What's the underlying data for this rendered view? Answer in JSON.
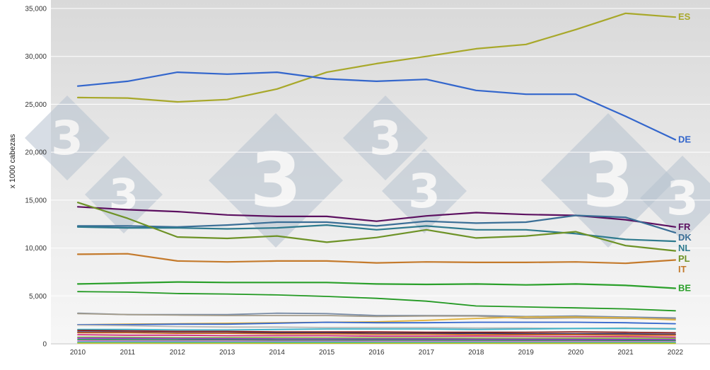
{
  "chart_data": {
    "type": "line",
    "title": "",
    "xlabel": "",
    "ylabel": "x 1000 cabezas",
    "x": [
      2010,
      2011,
      2012,
      2013,
      2014,
      2015,
      2016,
      2017,
      2018,
      2019,
      2020,
      2021,
      2022
    ],
    "x_tick_labels": [
      "2010",
      "2011",
      "2012",
      "2013",
      "2014",
      "2015",
      "2016",
      "2017",
      "2018",
      "2019",
      "2020",
      "2021",
      "2022"
    ],
    "ylim": [
      0,
      35000
    ],
    "y_ticks": [
      0,
      5000,
      10000,
      15000,
      20000,
      25000,
      30000,
      35000
    ],
    "y_tick_labels": [
      "0",
      "5,000",
      "10,000",
      "15,000",
      "20,000",
      "25,000",
      "30,000",
      "35,000"
    ],
    "grid": "horizontal",
    "watermark": "3",
    "series": [
      {
        "name": "ES",
        "color": "#a8a82a",
        "labeled": true,
        "values": [
          25700,
          25650,
          25250,
          25500,
          26600,
          28350,
          29250,
          30000,
          30800,
          31250,
          32800,
          34500,
          34100
        ]
      },
      {
        "name": "DE",
        "color": "#3366cc",
        "labeled": true,
        "values": [
          26900,
          27400,
          28350,
          28150,
          28350,
          27650,
          27400,
          27600,
          26450,
          26050,
          26050,
          23750,
          21300
        ]
      },
      {
        "name": "FR",
        "color": "#5c1060",
        "labeled": true,
        "values": [
          14300,
          14000,
          13800,
          13450,
          13300,
          13300,
          12800,
          13350,
          13700,
          13500,
          13400,
          12950,
          12200
        ]
      },
      {
        "name": "DK",
        "color": "#3a6e96",
        "labeled": true,
        "values": [
          12300,
          12300,
          12200,
          12400,
          12700,
          12700,
          12300,
          12800,
          12600,
          12700,
          13400,
          13200,
          11600
        ]
      },
      {
        "name": "NL",
        "color": "#2e7a8e",
        "labeled": true,
        "values": [
          12200,
          12100,
          12100,
          12000,
          12100,
          12400,
          11900,
          12300,
          11900,
          11900,
          11500,
          10900,
          10700
        ]
      },
      {
        "name": "PL",
        "color": "#6d9226",
        "labeled": true,
        "values": [
          14750,
          13100,
          11150,
          11000,
          11250,
          10600,
          11100,
          11900,
          11050,
          11250,
          11700,
          10250,
          9700
        ]
      },
      {
        "name": "IT",
        "color": "#c47a2c",
        "labeled": true,
        "values": [
          9350,
          9400,
          8650,
          8550,
          8650,
          8650,
          8450,
          8550,
          8500,
          8500,
          8550,
          8400,
          8750
        ]
      },
      {
        "name": "BE",
        "color": "#2ba02b",
        "labeled": true,
        "values": [
          6250,
          6350,
          6450,
          6400,
          6400,
          6400,
          6250,
          6200,
          6250,
          6150,
          6250,
          6100,
          5800
        ]
      },
      {
        "name": "",
        "color": "#229922",
        "labeled": false,
        "values": [
          5450,
          5400,
          5250,
          5200,
          5100,
          4950,
          4750,
          4450,
          3950,
          3850,
          3750,
          3650,
          3450
        ]
      },
      {
        "name": "",
        "color": "#7a8ca6",
        "labeled": false,
        "values": [
          3200,
          3050,
          3050,
          3050,
          3200,
          3150,
          2950,
          2950,
          2950,
          2850,
          2900,
          2800,
          2700
        ]
      },
      {
        "name": "",
        "color": "#a39b8a",
        "labeled": false,
        "values": [
          3150,
          3050,
          3000,
          2950,
          2950,
          2950,
          2850,
          2900,
          2900,
          2650,
          2700,
          2650,
          2600
        ]
      },
      {
        "name": "",
        "color": "#e3b33b",
        "labeled": false,
        "values": [
          2000,
          2050,
          2100,
          2150,
          2200,
          2250,
          2300,
          2450,
          2650,
          2800,
          2800,
          2700,
          2500
        ]
      },
      {
        "name": "",
        "color": "#3366cc",
        "labeled": false,
        "values": [
          2000,
          2000,
          2050,
          2050,
          2150,
          2250,
          2200,
          2200,
          2250,
          2250,
          2250,
          2200,
          2100
        ]
      },
      {
        "name": "",
        "color": "#b9b9b9",
        "labeled": false,
        "values": [
          1950,
          1900,
          1800,
          1750,
          1750,
          1700,
          1700,
          1700,
          1650,
          1650,
          1600,
          1650,
          1600
        ]
      },
      {
        "name": "",
        "color": "#3cb3c9",
        "labeled": false,
        "values": [
          1500,
          1500,
          1450,
          1450,
          1500,
          1550,
          1550,
          1550,
          1500,
          1550,
          1600,
          1600,
          1550
        ]
      },
      {
        "name": "",
        "color": "#8b1a1a",
        "labeled": false,
        "values": [
          1400,
          1350,
          1300,
          1300,
          1250,
          1250,
          1250,
          1200,
          1200,
          1200,
          1250,
          1200,
          1150
        ]
      },
      {
        "name": "",
        "color": "#333366",
        "labeled": false,
        "values": [
          1250,
          1200,
          1150,
          1150,
          1150,
          1150,
          1100,
          1100,
          1100,
          1050,
          1050,
          1050,
          1000
        ]
      },
      {
        "name": "",
        "color": "#d2691e",
        "labeled": false,
        "values": [
          1150,
          1150,
          1100,
          1100,
          1050,
          1050,
          1000,
          1000,
          950,
          950,
          950,
          900,
          900
        ]
      },
      {
        "name": "",
        "color": "#cc2a7a",
        "labeled": false,
        "values": [
          950,
          900,
          900,
          850,
          850,
          850,
          800,
          800,
          800,
          780,
          760,
          740,
          700
        ]
      },
      {
        "name": "",
        "color": "#7fbf3f",
        "labeled": false,
        "values": [
          700,
          680,
          660,
          650,
          640,
          630,
          620,
          610,
          600,
          590,
          580,
          570,
          560
        ]
      },
      {
        "name": "",
        "color": "#9933cc",
        "labeled": false,
        "values": [
          600,
          580,
          560,
          540,
          520,
          520,
          500,
          500,
          480,
          470,
          460,
          450,
          440
        ]
      },
      {
        "name": "",
        "color": "#2e8b57",
        "labeled": false,
        "values": [
          450,
          430,
          420,
          410,
          400,
          400,
          390,
          380,
          370,
          360,
          350,
          340,
          330
        ]
      },
      {
        "name": "",
        "color": "#e377c2",
        "labeled": false,
        "values": [
          300,
          290,
          280,
          280,
          270,
          270,
          260,
          260,
          250,
          250,
          240,
          230,
          220
        ]
      },
      {
        "name": "",
        "color": "#17becf",
        "labeled": false,
        "values": [
          180,
          170,
          170,
          160,
          160,
          160,
          150,
          150,
          150,
          140,
          140,
          130,
          130
        ]
      },
      {
        "name": "",
        "color": "#bcbd22",
        "labeled": false,
        "values": [
          80,
          80,
          75,
          75,
          70,
          70,
          70,
          65,
          65,
          60,
          60,
          60,
          55
        ]
      }
    ]
  }
}
